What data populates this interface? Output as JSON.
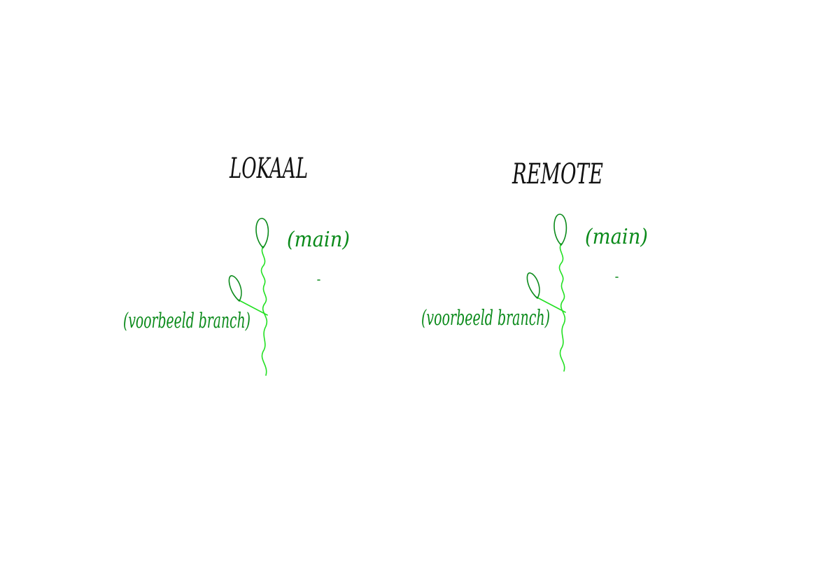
{
  "colors": {
    "title_ink": "#111111",
    "branch_dark": "#0a8a1a",
    "branch_light": "#22e022",
    "background": "#ffffff"
  },
  "panels": [
    {
      "title": "LOKAAL",
      "top_label": "(main)",
      "side_label": "(voorbeeld branch)"
    },
    {
      "title": "REMOTE",
      "top_label": "(main)",
      "side_label": "(voorbeeld branch)"
    }
  ]
}
